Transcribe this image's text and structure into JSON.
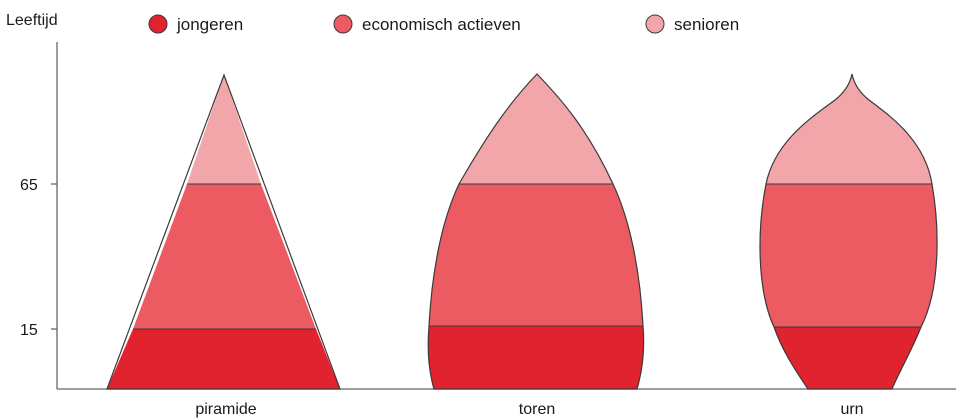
{
  "diagram": {
    "y_axis_label": "Leeftijd",
    "y_ticks": [
      "65",
      "15"
    ],
    "legend": [
      {
        "label": "jongeren",
        "color": "#e0232e"
      },
      {
        "label": "economisch actieven",
        "color": "#ec5b62"
      },
      {
        "label": "senioren",
        "color": "#f2a6a9"
      }
    ],
    "shapes": [
      {
        "label": "piramide"
      },
      {
        "label": "toren"
      },
      {
        "label": "urn"
      }
    ],
    "colors": {
      "outline": "#3a3a3a",
      "axis": "#666666"
    }
  }
}
